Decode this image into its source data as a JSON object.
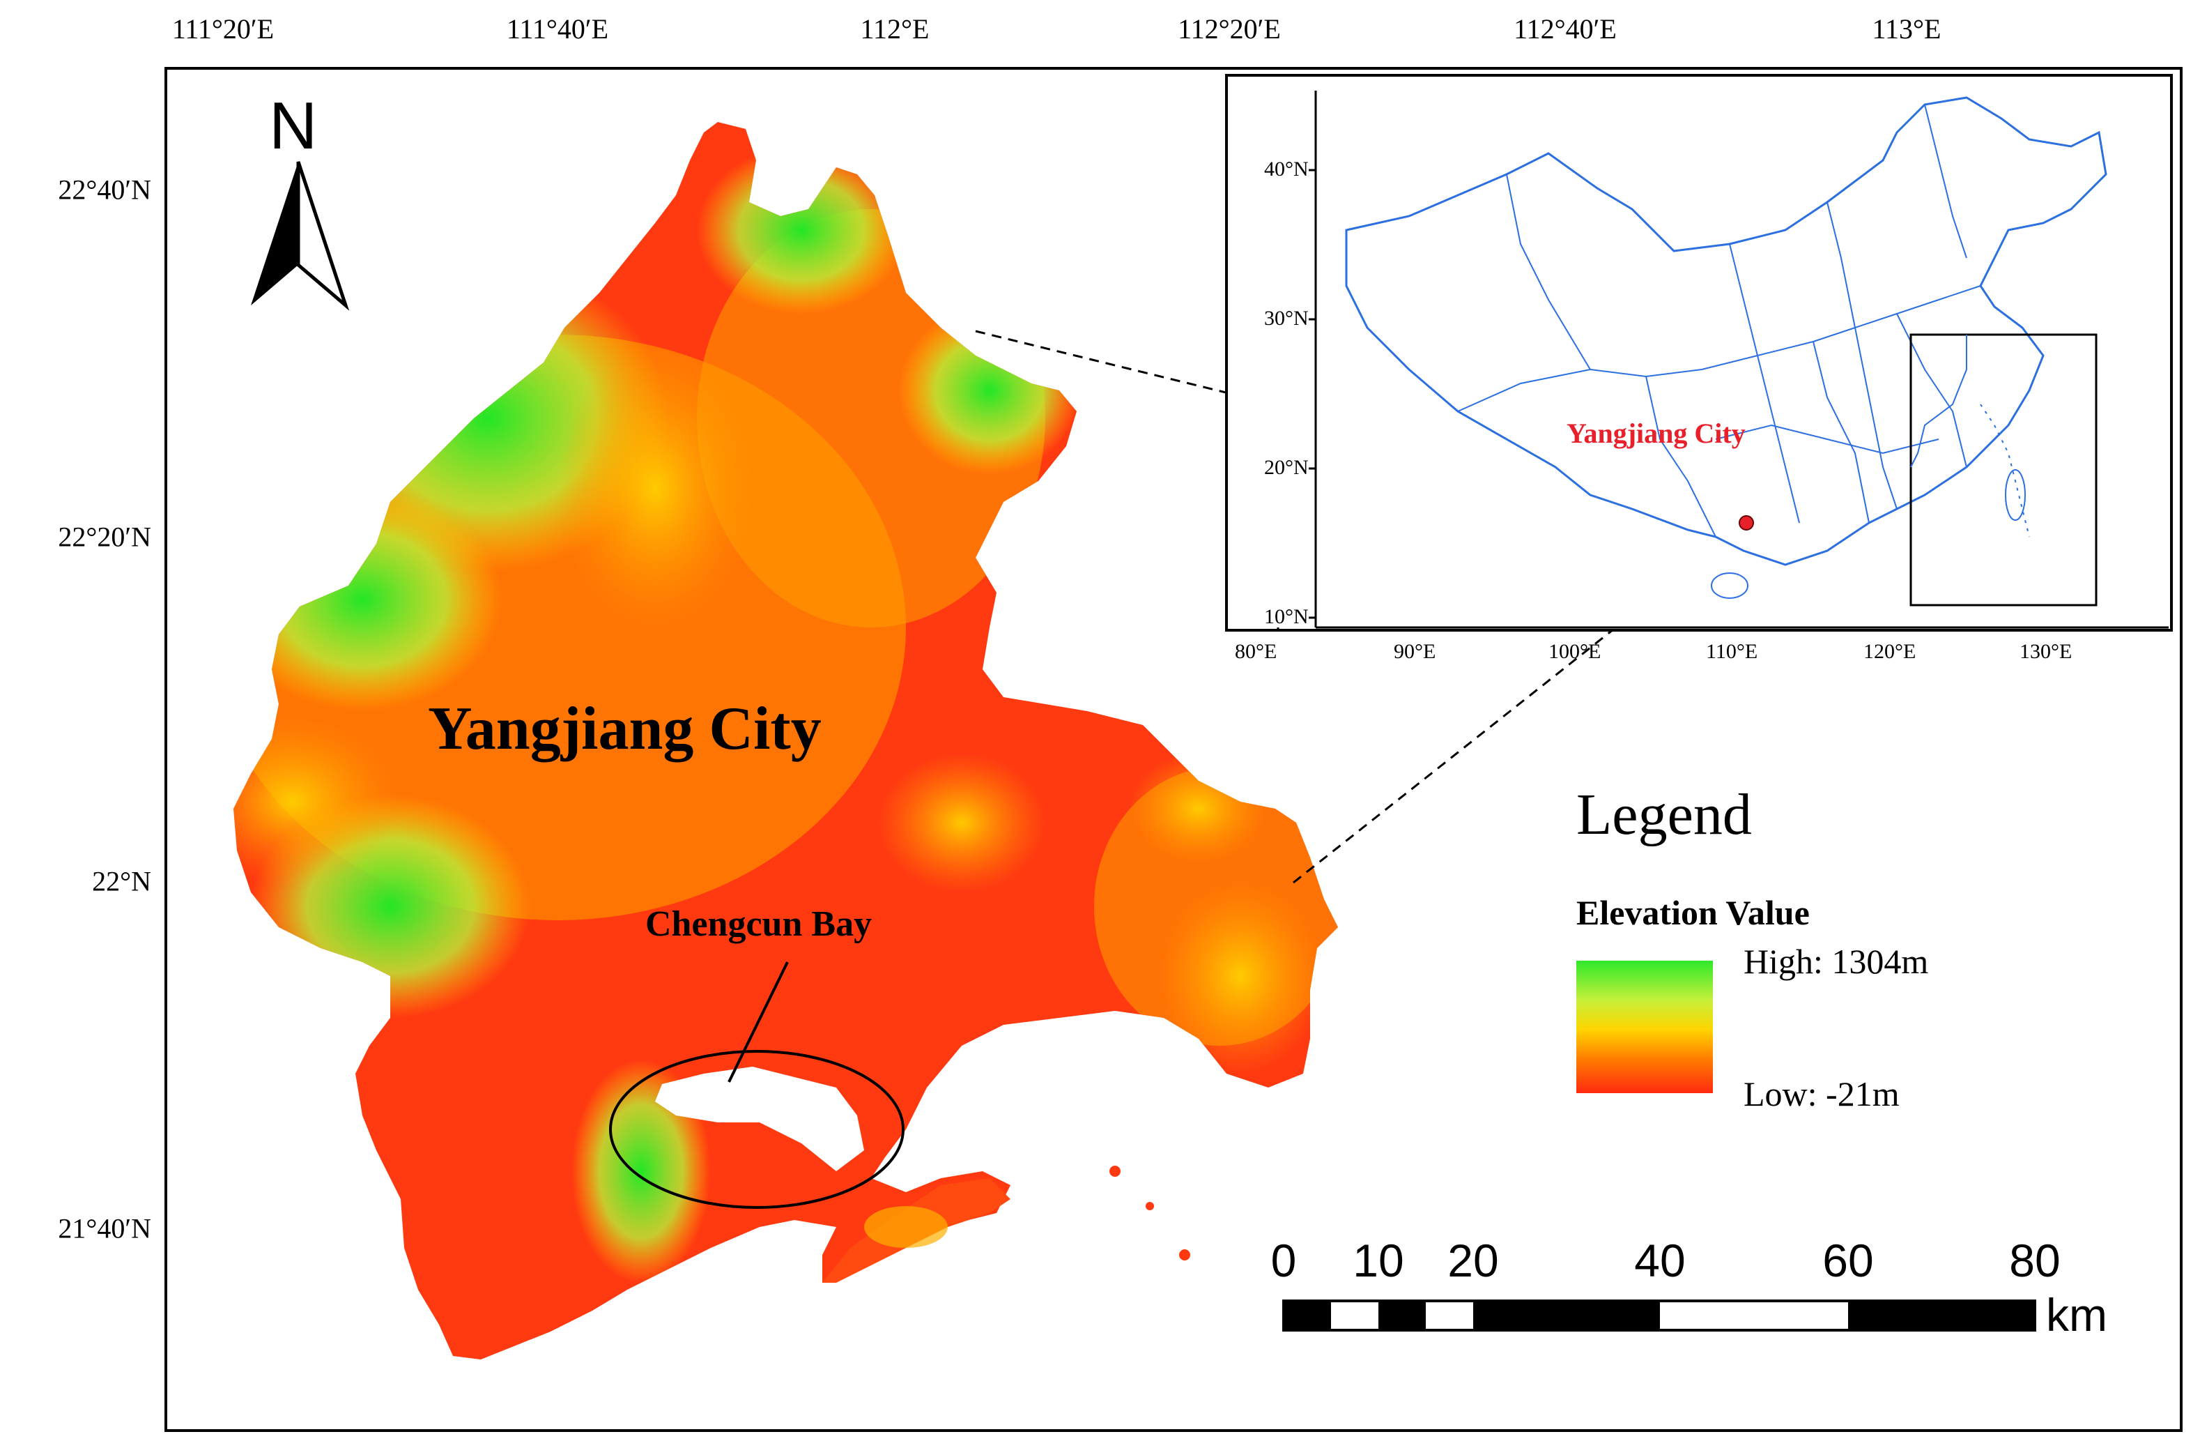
{
  "top_axis_ticks": [
    "111°20′E",
    "111°40′E",
    "112°E",
    "112°20′E",
    "112°40′E",
    "113°E"
  ],
  "left_axis_ticks": [
    "22°40′N",
    "22°20′N",
    "22°N",
    "21°40′N"
  ],
  "north_arrow": {
    "label": "N",
    "icon": "north-arrow-icon"
  },
  "main_map": {
    "city_label": "Yangjiang City",
    "bay_label": "Chengcun Bay"
  },
  "inset_map": {
    "city_label": "Yangjiang City",
    "lat_ticks": [
      "40°N",
      "30°N",
      "20°N",
      "10°N"
    ],
    "lon_ticks": [
      "80°E",
      "90°E",
      "100°E",
      "110°E",
      "120°E",
      "130°E"
    ],
    "boundary_color": "#2b6fe0",
    "label_color": "#e8202a"
  },
  "legend": {
    "title": "Legend",
    "subtitle": "Elevation Value",
    "high": "High: 1304m",
    "low": "Low: -21m",
    "colors": {
      "high": "#2ee82a",
      "mid": "#ffd400",
      "low": "#ff2a10"
    }
  },
  "scale_bar": {
    "labels": [
      "0",
      "10",
      "20",
      "40",
      "60",
      "80"
    ],
    "unit": "km"
  }
}
